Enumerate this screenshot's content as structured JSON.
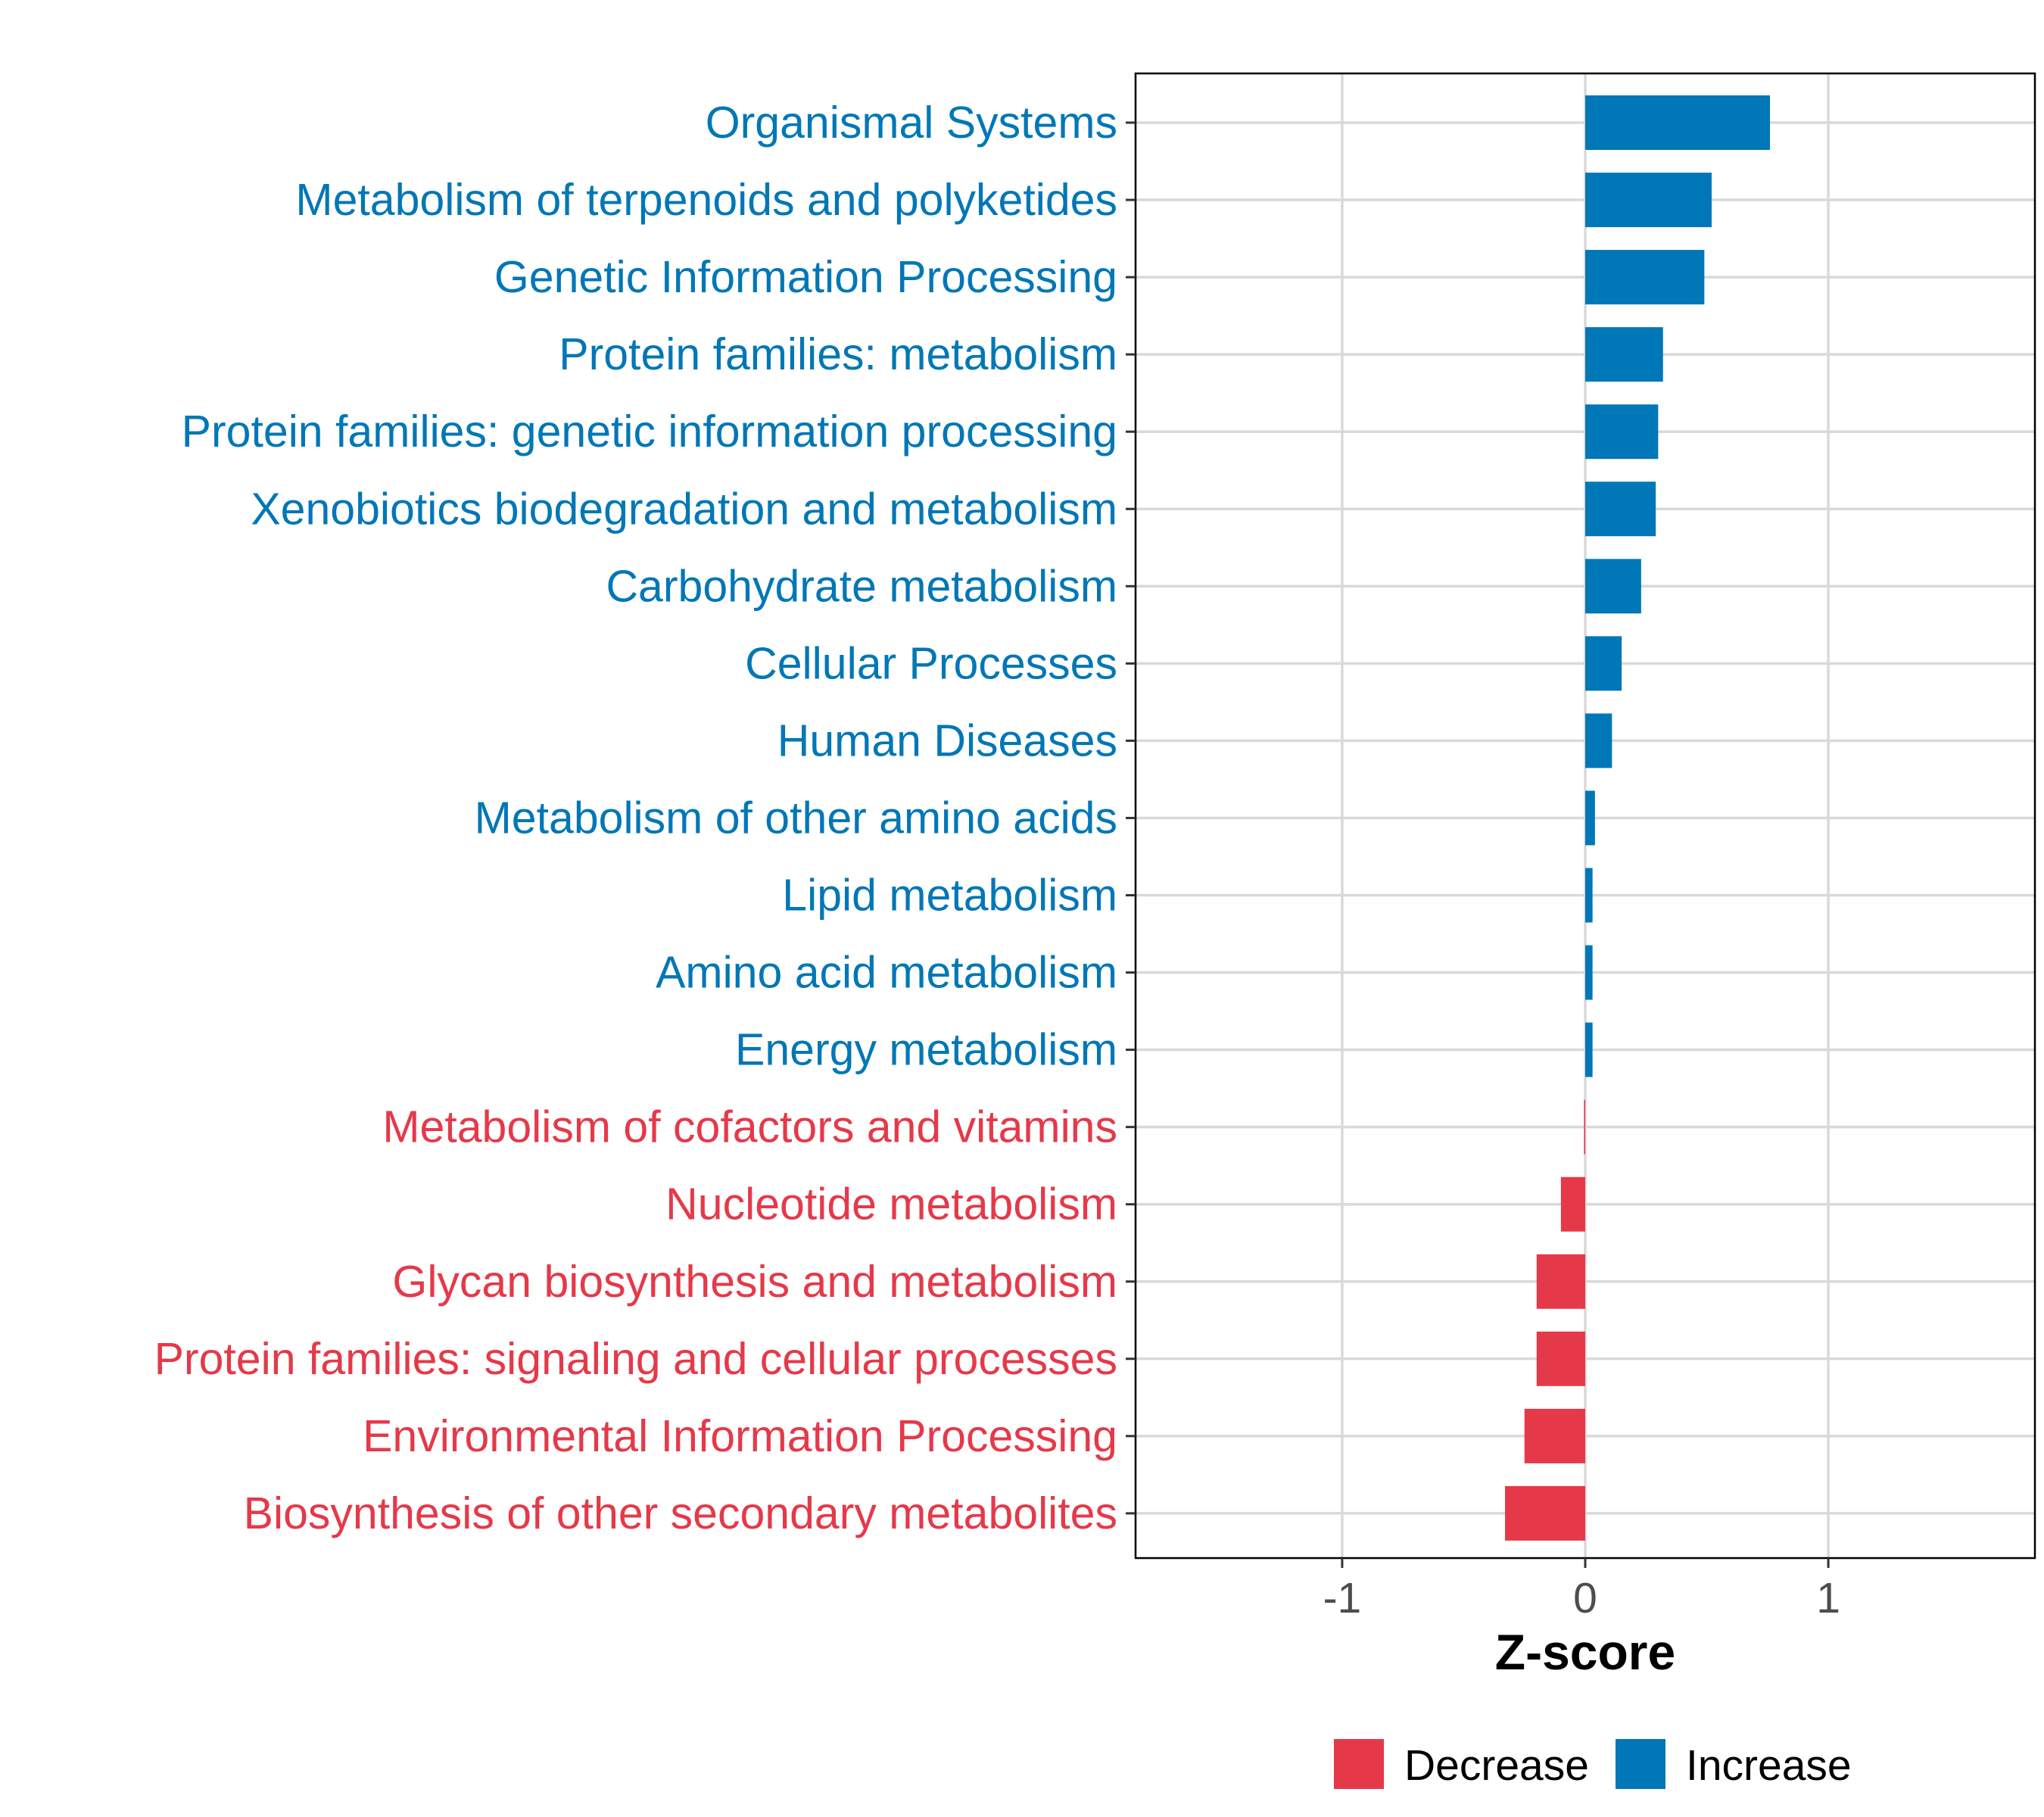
{
  "chart_data": {
    "type": "bar",
    "orientation": "horizontal",
    "xlabel": "Z-score",
    "xlim": [
      -1.85,
      1.85
    ],
    "xticks": [
      -1,
      0,
      1
    ],
    "xtick_labels": [
      "-1",
      "0",
      "1"
    ],
    "grid": true,
    "colors": {
      "Decrease": "#e53949",
      "Increase": "#0077b6"
    },
    "categories": [
      "Organismal Systems",
      "Metabolism of terpenoids and polyketides",
      "Genetic Information Processing",
      "Protein families: metabolism",
      "Protein families: genetic information processing",
      "Xenobiotics biodegradation and metabolism",
      "Carbohydrate metabolism",
      "Cellular Processes",
      "Human Diseases",
      "Metabolism of other amino acids",
      "Lipid metabolism",
      "Amino acid metabolism",
      "Energy metabolism",
      "Metabolism of cofactors and vitamins",
      "Nucleotide metabolism",
      "Glycan biosynthesis and metabolism",
      "Protein families: signaling and cellular processes",
      "Environmental Information Processing",
      "Biosynthesis of other secondary metabolites"
    ],
    "values": [
      0.76,
      0.52,
      0.49,
      0.32,
      0.3,
      0.29,
      0.23,
      0.15,
      0.11,
      0.04,
      0.03,
      0.03,
      0.03,
      -0.005,
      -0.1,
      -0.2,
      -0.2,
      -0.25,
      -0.33
    ],
    "groups": [
      "Increase",
      "Increase",
      "Increase",
      "Increase",
      "Increase",
      "Increase",
      "Increase",
      "Increase",
      "Increase",
      "Increase",
      "Increase",
      "Increase",
      "Increase",
      "Decrease",
      "Decrease",
      "Decrease",
      "Decrease",
      "Decrease",
      "Decrease"
    ],
    "legend": {
      "position": "bottom",
      "entries": [
        {
          "label": "Decrease",
          "color": "#e53949"
        },
        {
          "label": "Increase",
          "color": "#0077b6"
        }
      ]
    }
  }
}
